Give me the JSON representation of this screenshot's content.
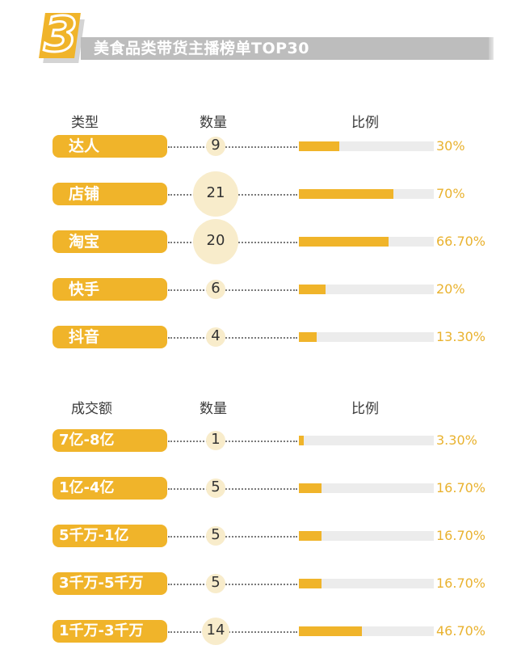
{
  "header": {
    "badge_number": "3",
    "title": "美食品类带货主播榜单TOP30"
  },
  "chart_data": [
    {
      "type": "bar",
      "headers": {
        "category": "类型",
        "count": "数量",
        "ratio": "比例"
      },
      "categories": [
        "达人",
        "店铺",
        "淘宝",
        "快手",
        "抖音"
      ],
      "counts": [
        9,
        21,
        20,
        6,
        4
      ],
      "values": [
        30,
        70,
        66.7,
        20,
        13.3
      ],
      "labels": [
        "30%",
        "70%",
        "66.70%",
        "20%",
        "13.30%"
      ],
      "ylim": [
        0,
        100
      ]
    },
    {
      "type": "bar",
      "headers": {
        "category": "成交额",
        "count": "数量",
        "ratio": "比例"
      },
      "categories": [
        "7亿-8亿",
        "1亿-4亿",
        "5千万-1亿",
        "3千万-5千万",
        "1千万-3千万"
      ],
      "counts": [
        1,
        5,
        5,
        5,
        14
      ],
      "values": [
        3.3,
        16.7,
        16.7,
        16.7,
        46.7
      ],
      "labels": [
        "3.30%",
        "16.70%",
        "16.70%",
        "16.70%",
        "46.70%"
      ],
      "ylim": [
        0,
        100
      ]
    }
  ],
  "colors": {
    "accent": "#f0b42a",
    "track": "#ececec",
    "circle": "#f8eccb",
    "title_bar": "#bdbdbd"
  }
}
